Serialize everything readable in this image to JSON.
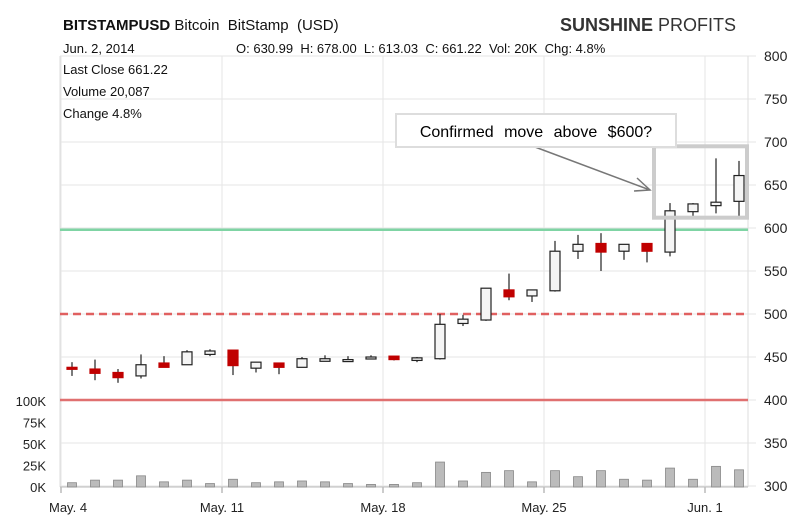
{
  "header": {
    "symbol": "BITSTAMPUSD",
    "name": "Bitcoin  BitStamp  (USD)",
    "brand_bold": "SUNSHINE",
    "brand_rest": " PROFITS",
    "date": "Jun. 2, 2014",
    "ohlc": "O: 630.99  H: 678.00  L: 613.03  C: 661.22  Vol: 20K  Chg: 4.8%"
  },
  "info": {
    "last_close": "Last Close 661.22",
    "volume": "Volume 20,087",
    "change": "Change 4.8%"
  },
  "annotation": "Confirmed move above $600?",
  "colors": {
    "up": "#f5f5f5",
    "down": "#c00000",
    "support_green": "#7fd4a4",
    "resistance_dashed": "#e06060",
    "level_red": "#e07070",
    "volume": "#bbbbbb",
    "grid": "#e6e6e6"
  },
  "chart_data": {
    "type": "candlestick",
    "title": "BITSTAMPUSD Bitcoin BitStamp (USD)",
    "price_axis": {
      "range": [
        300,
        800
      ],
      "ticks": [
        300,
        350,
        400,
        450,
        500,
        550,
        600,
        650,
        700,
        750,
        800
      ],
      "position": "right"
    },
    "volume_axis": {
      "range": [
        0,
        100
      ],
      "unit": "K",
      "ticks": [
        "0K",
        "25K",
        "50K",
        "75K",
        "100K"
      ],
      "values": [
        0,
        25,
        50,
        75,
        100
      ],
      "position": "left"
    },
    "x_ticks": [
      {
        "label": "May. 4",
        "index": 0
      },
      {
        "label": "May. 11",
        "index": 7
      },
      {
        "label": "May. 18",
        "index": 14
      },
      {
        "label": "May. 25",
        "index": 21
      },
      {
        "label": "Jun. 1",
        "index": 28
      }
    ],
    "horizontal_lines": [
      {
        "value": 598,
        "style": "solid",
        "color": "green"
      },
      {
        "value": 500,
        "style": "dashed",
        "color": "red"
      },
      {
        "value": 400,
        "style": "solid",
        "color": "red"
      }
    ],
    "candles": [
      [
        438,
        444,
        428,
        436,
        5
      ],
      [
        436,
        447,
        423,
        431,
        8
      ],
      [
        432,
        436,
        420,
        426,
        8
      ],
      [
        428,
        453,
        425,
        441,
        13
      ],
      [
        443,
        451,
        438,
        438,
        6
      ],
      [
        441,
        458,
        441,
        456,
        8
      ],
      [
        453,
        459,
        451,
        457,
        4
      ],
      [
        458,
        458,
        429,
        440,
        9
      ],
      [
        437,
        444,
        432,
        444,
        5
      ],
      [
        443,
        443,
        430,
        438,
        6
      ],
      [
        438,
        450,
        438,
        448,
        7
      ],
      [
        445,
        452,
        445,
        448,
        6
      ],
      [
        447,
        451,
        445,
        447,
        4
      ],
      [
        448,
        452,
        448,
        450,
        3
      ],
      [
        451,
        451,
        446,
        447,
        3
      ],
      [
        446,
        450,
        444,
        449,
        5
      ],
      [
        448,
        500,
        447,
        488,
        29
      ],
      [
        489,
        499,
        486,
        494,
        7
      ],
      [
        493,
        530,
        492,
        530,
        17
      ],
      [
        528,
        547,
        516,
        520,
        19
      ],
      [
        521,
        528,
        514,
        528,
        6
      ],
      [
        527,
        585,
        526,
        573,
        19
      ],
      [
        573,
        592,
        564,
        581,
        12
      ],
      [
        582,
        594,
        550,
        572,
        19
      ],
      [
        573,
        581,
        563,
        581,
        9
      ],
      [
        582,
        582,
        560,
        573,
        8
      ],
      [
        572,
        629,
        567,
        620,
        22
      ],
      [
        619,
        629,
        610,
        628,
        9
      ],
      [
        626,
        681,
        617,
        630,
        24
      ],
      [
        631,
        678,
        613,
        661,
        20
      ]
    ],
    "candle_fields": [
      "open",
      "high",
      "low",
      "close",
      "volume_K"
    ],
    "highlight": {
      "from_index": 26,
      "to_index": 29,
      "price_range": [
        612,
        695
      ]
    }
  }
}
